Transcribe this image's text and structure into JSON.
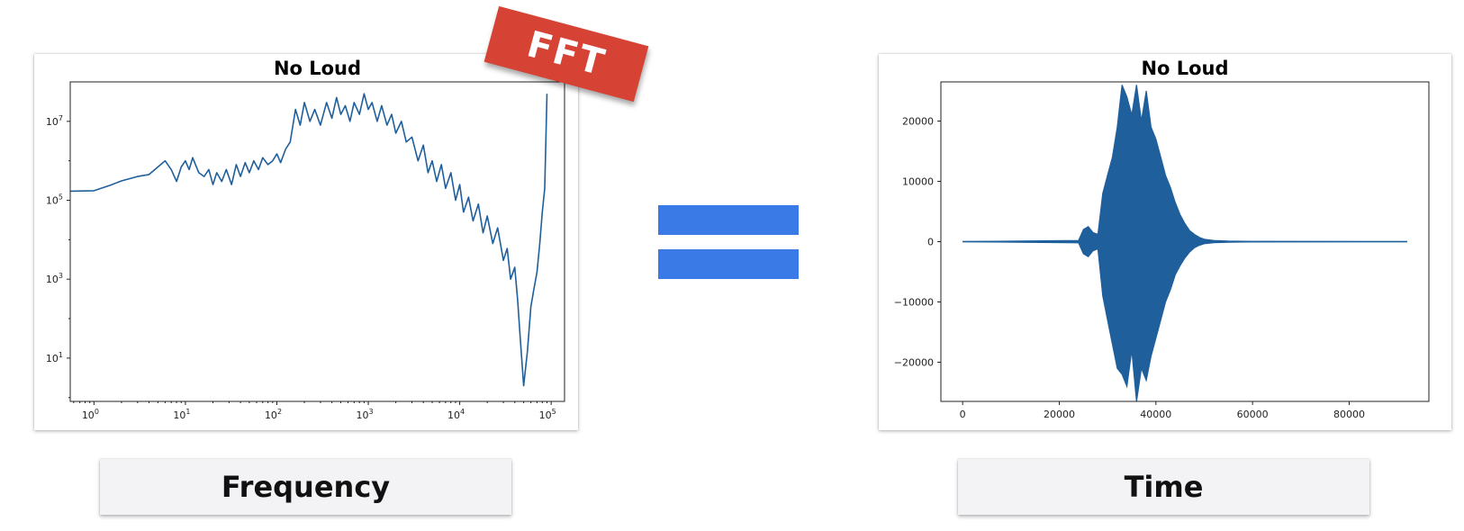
{
  "badge": {
    "text": "FFT",
    "color": "#d64335"
  },
  "equals_color": "#3a7ae6",
  "labels": {
    "left": "Frequency",
    "right": "Time"
  },
  "chart_data": [
    {
      "type": "line",
      "title": "No Loud",
      "xlabel": "",
      "ylabel": "",
      "x_scale": "log",
      "y_scale": "log",
      "xlim": [
        0.55,
        140000
      ],
      "ylim": [
        0.8,
        100000000
      ],
      "x_ticks": [
        1,
        10,
        100,
        1000,
        10000,
        100000
      ],
      "x_tick_labels": [
        {
          "base": "10",
          "exp": "0"
        },
        {
          "base": "10",
          "exp": "1"
        },
        {
          "base": "10",
          "exp": "2"
        },
        {
          "base": "10",
          "exp": "3"
        },
        {
          "base": "10",
          "exp": "4"
        },
        {
          "base": "10",
          "exp": "5"
        }
      ],
      "y_ticks": [
        10,
        1000,
        100000,
        10000000
      ],
      "y_tick_labels": [
        {
          "base": "10",
          "exp": "1"
        },
        {
          "base": "10",
          "exp": "3"
        },
        {
          "base": "10",
          "exp": "5"
        },
        {
          "base": "10",
          "exp": "7"
        }
      ],
      "grid": false,
      "color": "#1f5f9c",
      "x": [
        0.55,
        1,
        1.5,
        2,
        3,
        4,
        5,
        6,
        7,
        8,
        9,
        10,
        11,
        12,
        14,
        16,
        18,
        20,
        22,
        25,
        28,
        32,
        36,
        40,
        45,
        50,
        56,
        63,
        70,
        80,
        90,
        100,
        110,
        125,
        140,
        160,
        180,
        200,
        230,
        260,
        300,
        350,
        400,
        450,
        500,
        560,
        630,
        700,
        800,
        900,
        1000,
        1100,
        1250,
        1400,
        1600,
        1800,
        2000,
        2300,
        2600,
        3000,
        3500,
        4000,
        4500,
        5000,
        5600,
        6300,
        7000,
        8000,
        9000,
        10000,
        11000,
        12500,
        14000,
        16000,
        18000,
        20000,
        23000,
        26000,
        30000,
        33000,
        36000,
        40000,
        43000,
        46000,
        50000,
        55000,
        60000,
        65000,
        70000,
        75000,
        80000,
        85000,
        90000
      ],
      "y": [
        170000,
        175000,
        240000,
        310000,
        400000,
        450000,
        700000,
        1000000,
        600000,
        300000,
        700000,
        1000000,
        600000,
        1200000,
        500000,
        400000,
        600000,
        250000,
        500000,
        300000,
        600000,
        250000,
        800000,
        400000,
        900000,
        500000,
        1000000,
        600000,
        1200000,
        800000,
        1000000,
        1500000,
        900000,
        2000000,
        3000000,
        20000000,
        8000000,
        30000000,
        10000000,
        20000000,
        8000000,
        30000000,
        12000000,
        40000000,
        15000000,
        25000000,
        10000000,
        30000000,
        15000000,
        50000000,
        20000000,
        30000000,
        10000000,
        25000000,
        8000000,
        15000000,
        5000000,
        10000000,
        3000000,
        4000000,
        1000000,
        2500000,
        500000,
        1000000,
        300000,
        800000,
        200000,
        500000,
        100000,
        250000,
        50000,
        120000,
        30000,
        80000,
        15000,
        40000,
        8000,
        20000,
        3000,
        6000,
        1000,
        2000,
        300,
        30,
        2,
        15,
        200,
        600,
        1500,
        8000,
        50000,
        200000,
        50000000
      ]
    },
    {
      "type": "line",
      "title": "No Loud",
      "xlabel": "",
      "ylabel": "",
      "xlim": [
        -4500,
        96500
      ],
      "ylim": [
        -26500,
        26500
      ],
      "x_ticks": [
        0,
        20000,
        40000,
        60000,
        80000
      ],
      "y_ticks": [
        -20000,
        -10000,
        0,
        10000,
        20000
      ],
      "grid": false,
      "color": "#1f5f9c",
      "x": [
        0,
        24000,
        25000,
        26000,
        27000,
        28000,
        29000,
        30000,
        31000,
        32000,
        33000,
        34000,
        35000,
        36000,
        37000,
        38000,
        39000,
        40000,
        41000,
        42000,
        43000,
        44000,
        45000,
        46000,
        47000,
        48000,
        49000,
        50000,
        52000,
        55000,
        60000,
        92000
      ],
      "y_max": [
        0,
        200,
        2000,
        2500,
        1500,
        1200,
        8000,
        11000,
        14000,
        19000,
        26000,
        24000,
        21000,
        26000,
        20000,
        25000,
        19000,
        17000,
        14000,
        11000,
        9000,
        6500,
        4500,
        3000,
        1800,
        1200,
        700,
        400,
        200,
        100,
        50,
        0
      ],
      "y_min": [
        0,
        -200,
        -2000,
        -2500,
        -1500,
        -1200,
        -9000,
        -13000,
        -17000,
        -21000,
        -22000,
        -24000,
        -18000,
        -26500,
        -21000,
        -23000,
        -19000,
        -16000,
        -13000,
        -10000,
        -8000,
        -5500,
        -4000,
        -2700,
        -1700,
        -1000,
        -600,
        -350,
        -180,
        -90,
        -50,
        0
      ]
    }
  ]
}
